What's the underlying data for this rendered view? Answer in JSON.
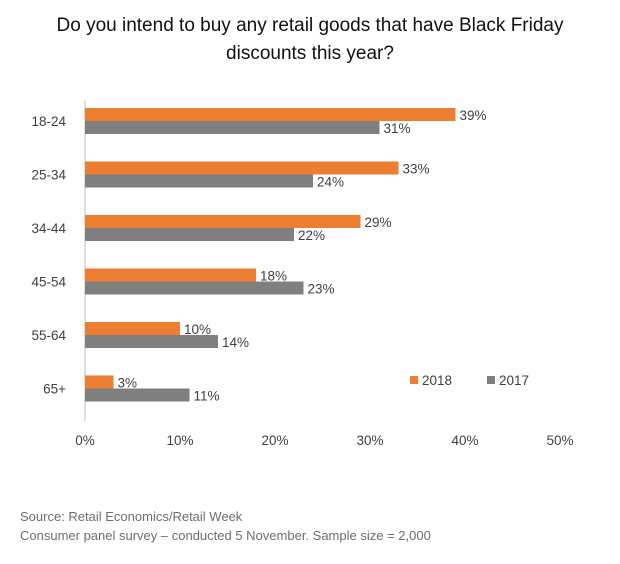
{
  "title_lines": [
    "Do you intend to buy any retail goods that have Black Friday",
    "discounts this year?"
  ],
  "source_lines": [
    "Source: Retail Economics/Retail Week",
    "Consumer panel survey – conducted 5 November. Sample size = 2,000"
  ],
  "colors": {
    "series_2018": "#ED7D31",
    "series_2017": "#7F7F7F",
    "axis": "#BFBFBF",
    "text": "#404040"
  },
  "chart_data": {
    "type": "bar",
    "orientation": "horizontal",
    "title": "Do you intend to buy any retail goods that have Black Friday discounts this year?",
    "categories": [
      "18-24",
      "25-34",
      "34-44",
      "45-54",
      "55-64",
      "65+"
    ],
    "series": [
      {
        "name": "2018",
        "values": [
          39,
          33,
          29,
          18,
          10,
          3
        ],
        "labels": [
          "39%",
          "33%",
          "29%",
          "18%",
          "10%",
          "3%"
        ]
      },
      {
        "name": "2017",
        "values": [
          31,
          24,
          22,
          23,
          14,
          11
        ],
        "labels": [
          "31%",
          "24%",
          "22%",
          "23%",
          "14%",
          "11%"
        ]
      }
    ],
    "xlim": [
      0,
      50
    ],
    "xticks": [
      "0%",
      "10%",
      "20%",
      "30%",
      "40%",
      "50%"
    ],
    "grid": false,
    "legend_position": "bottom-right"
  }
}
